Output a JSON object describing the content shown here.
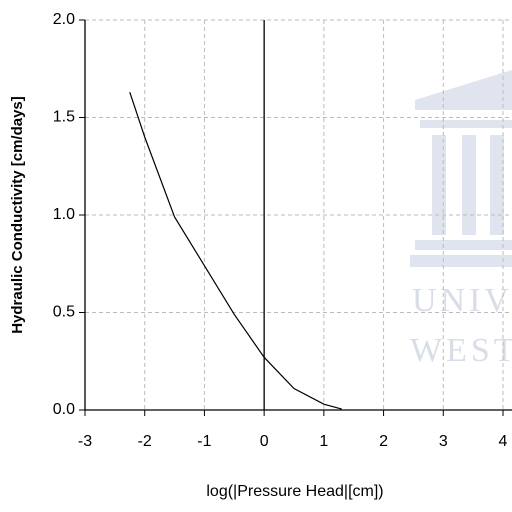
{
  "chart_data": {
    "type": "line",
    "x_label": "log(|Pressure Head|[cm])",
    "y_label": "Hydraulic Conductivity [cm/days]",
    "annotations": [
      "UNIV",
      "WEST"
    ],
    "x": [
      -2.25,
      -2,
      -1.5,
      -1,
      -0.5,
      0,
      0.5,
      1,
      1.3
    ],
    "series": [
      {
        "color": "#000000",
        "values": [
          1.63,
          1.4,
          0.99,
          0.74,
          0.49,
          0.27,
          0.11,
          0.03,
          0.005
        ]
      }
    ],
    "xlim": [
      -3,
      4
    ],
    "xticks": [
      -3,
      -2,
      -1,
      0,
      1,
      2,
      3,
      4
    ],
    "ylim": [
      0,
      2
    ],
    "yticks": [
      {
        "value": 0,
        "label": "0.0"
      },
      {
        "value": 0.5,
        "label": "0.5"
      },
      {
        "value": 1,
        "label": "1.0"
      },
      {
        "value": 1.5,
        "label": "1.5"
      },
      {
        "value": 2,
        "label": "2.0"
      }
    ],
    "grid": true
  }
}
